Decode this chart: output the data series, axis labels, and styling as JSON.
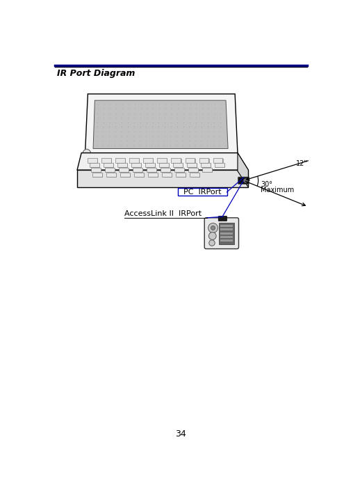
{
  "title": "IR Port Diagram",
  "page_number": "34",
  "bg_color": "#ffffff",
  "title_color": "#000000",
  "title_fontsize": 9,
  "label_pc_irport": "PC  IRPort",
  "label_accesslink": "AccessLink II  IRPort",
  "label_angle": "30°",
  "label_maximum": "Maximum",
  "label_distance": "12\"",
  "screen_fill": "#c0c0c0",
  "key_fill": "#aaaaaa",
  "laptop_body_fill": "#f5f5f5",
  "ir_port_fill": "#111111",
  "device_fill": "#e0e0e0",
  "line_color": "#0000bb",
  "arrow_color": "#000000",
  "title_bar_color": "#000080"
}
